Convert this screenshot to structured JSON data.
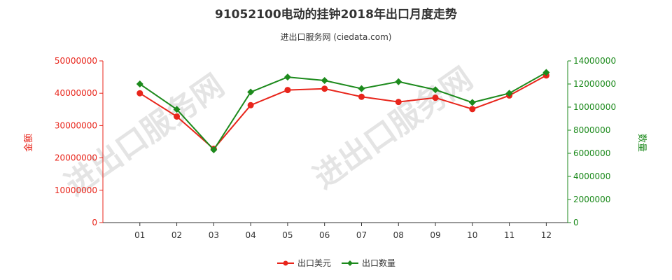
{
  "chart_data": {
    "type": "line",
    "title": "91052100电动的挂钟2018年出口月度走势",
    "subtitle": "进出口服务网 (ciedata.com)",
    "watermark": "进出口服务网",
    "categories": [
      "01",
      "02",
      "03",
      "04",
      "05",
      "06",
      "07",
      "08",
      "09",
      "10",
      "11",
      "12"
    ],
    "y_left": {
      "label": "金额",
      "range": [
        0,
        50000000
      ],
      "ticks": [
        "0",
        "10000000",
        "20000000",
        "30000000",
        "40000000",
        "50000000"
      ],
      "color": "#e8251b"
    },
    "y_right": {
      "label": "数量",
      "range": [
        0,
        14000000
      ],
      "ticks": [
        "0",
        "2000000",
        "4000000",
        "6000000",
        "8000000",
        "10000000",
        "12000000",
        "14000000"
      ],
      "color": "#1c8a1c"
    },
    "grid": false,
    "legend_position": "bottom-center",
    "series": [
      {
        "name": "出口美元",
        "axis": "left",
        "color": "#e8251b",
        "marker": "circle",
        "values": [
          40000000,
          32800000,
          22800000,
          36300000,
          41000000,
          41400000,
          38900000,
          37300000,
          38600000,
          35100000,
          39300000,
          45500000
        ]
      },
      {
        "name": "出口数量",
        "axis": "right",
        "color": "#1c8a1c",
        "marker": "diamond",
        "values": [
          12000000,
          9800000,
          6300000,
          11300000,
          12600000,
          12300000,
          11600000,
          12200000,
          11500000,
          10400000,
          11200000,
          13000000
        ]
      }
    ]
  }
}
